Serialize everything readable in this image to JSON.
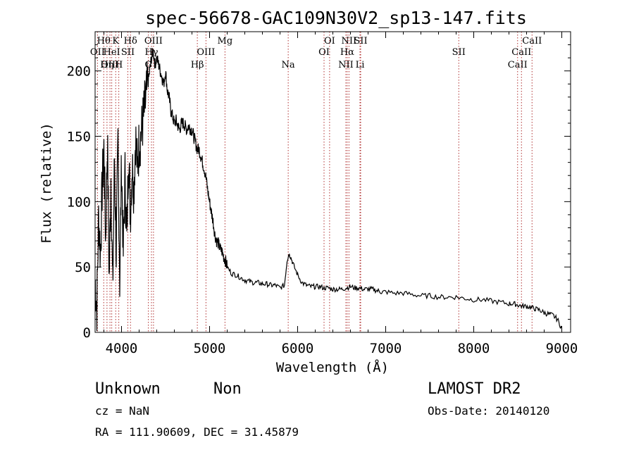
{
  "chart_data": {
    "type": "line",
    "title": "spec-56678-GAC109N30V2_sp13-147.fits",
    "xlabel": "Wavelength (Å)",
    "ylabel": "Flux (relative)",
    "xlim": [
      3700,
      9100
    ],
    "ylim": [
      0,
      230
    ],
    "xticks": [
      4000,
      5000,
      6000,
      7000,
      8000,
      9000
    ],
    "yticks": [
      0,
      50,
      100,
      150,
      200
    ],
    "grid": false,
    "series": [
      {
        "values_note": "",
        "x": [
          3700,
          3720,
          3740,
          3760,
          3780,
          3800,
          3820,
          3840,
          3860,
          3880,
          3900,
          3920,
          3940,
          3960,
          3980,
          4000,
          4020,
          4040,
          4060,
          4080,
          4100,
          4120,
          4140,
          4160,
          4180,
          4200,
          4220,
          4240,
          4260,
          4280,
          4300,
          4320,
          4340,
          4360,
          4380,
          4400,
          4420,
          4440,
          4460,
          4480,
          4500,
          4520,
          4540,
          4560,
          4580,
          4600,
          4620,
          4640,
          4660,
          4680,
          4700,
          4720,
          4740,
          4760,
          4780,
          4800,
          4820,
          4840,
          4860,
          4880,
          4900,
          4920,
          4940,
          4960,
          4980,
          5000,
          5020,
          5040,
          5060,
          5080,
          5100,
          5120,
          5140,
          5160,
          5180,
          5200,
          5250,
          5300,
          5350,
          5400,
          5450,
          5500,
          5550,
          5600,
          5650,
          5700,
          5750,
          5800,
          5850,
          5880,
          5900,
          5920,
          5950,
          6000,
          6050,
          6100,
          6150,
          6200,
          6250,
          6300,
          6350,
          6400,
          6450,
          6500,
          6550,
          6600,
          6650,
          6700,
          6750,
          6800,
          6850,
          6900,
          6950,
          7000,
          7100,
          7200,
          7300,
          7400,
          7500,
          7600,
          7700,
          7800,
          7900,
          8000,
          8100,
          8200,
          8300,
          8400,
          8450,
          8500,
          8550,
          8600,
          8650,
          8700,
          8750,
          8800,
          8850,
          8900,
          8950,
          9000
        ],
        "y": [
          40,
          20,
          90,
          60,
          110,
          140,
          70,
          150,
          40,
          120,
          30,
          135,
          60,
          145,
          40,
          130,
          60,
          120,
          70,
          140,
          90,
          130,
          110,
          150,
          125,
          145,
          150,
          160,
          170,
          180,
          190,
          200,
          210,
          215,
          205,
          210,
          205,
          200,
          195,
          190,
          200,
          185,
          180,
          170,
          165,
          160,
          162,
          158,
          155,
          160,
          160,
          158,
          155,
          158,
          156,
          155,
          150,
          145,
          140,
          140,
          135,
          130,
          125,
          118,
          108,
          100,
          92,
          85,
          75,
          70,
          68,
          64,
          62,
          58,
          55,
          50,
          45,
          44,
          42,
          40,
          39,
          38,
          38,
          37,
          37,
          36,
          36,
          34,
          36,
          55,
          60,
          58,
          52,
          44,
          38,
          36,
          35,
          35,
          35,
          34,
          34,
          33,
          33,
          33,
          34,
          35,
          34,
          34,
          33,
          33,
          33,
          32,
          31,
          31,
          30,
          30,
          29,
          28,
          28,
          27,
          27,
          27,
          26,
          25,
          25,
          24,
          23,
          22,
          22,
          21,
          20,
          20,
          19,
          18,
          17,
          15,
          14,
          13,
          10,
          3
        ]
      }
    ],
    "spectral_lines": [
      {
        "name": "Hθ",
        "wavelength": 3798,
        "row": 0
      },
      {
        "name": "K",
        "wavelength": 3934,
        "row": 0
      },
      {
        "name": "Hδ",
        "wavelength": 4102,
        "row": 0
      },
      {
        "name": "OII",
        "wavelength": 3727,
        "row": 1
      },
      {
        "name": "HeI",
        "wavelength": 3889,
        "row": 1
      },
      {
        "name": "SII",
        "wavelength": 4072,
        "row": 1
      },
      {
        "name": "OIII",
        "wavelength": 3869,
        "row": 2
      },
      {
        "name": "Hη",
        "wavelength": 3835,
        "row": 2
      },
      {
        "name": "H",
        "wavelength": 3969,
        "row": 2
      },
      {
        "name": "OIII",
        "wavelength": 4363,
        "row": 0
      },
      {
        "name": "Hγ",
        "wavelength": 4340,
        "row": 1
      },
      {
        "name": "G",
        "wavelength": 4305,
        "row": 2
      },
      {
        "name": "Hβ",
        "wavelength": 4861,
        "row": 2
      },
      {
        "name": "OIII",
        "wavelength": 4959,
        "row": 1
      },
      {
        "name": "Mg",
        "wavelength": 5175,
        "row": 0
      },
      {
        "name": "Na",
        "wavelength": 5893,
        "row": 2
      },
      {
        "name": "OI",
        "wavelength": 6363,
        "row": 0
      },
      {
        "name": "OI",
        "wavelength": 6300,
        "row": 1
      },
      {
        "name": "NII",
        "wavelength": 6583,
        "row": 0
      },
      {
        "name": "SII",
        "wavelength": 6716,
        "row": 0
      },
      {
        "name": "Hα",
        "wavelength": 6563,
        "row": 1
      },
      {
        "name": "NII",
        "wavelength": 6548,
        "row": 2
      },
      {
        "name": "Li",
        "wavelength": 6708,
        "row": 2
      },
      {
        "name": "SII",
        "wavelength": 7830,
        "row": 1
      },
      {
        "name": "CaII",
        "wavelength": 8662,
        "row": 0
      },
      {
        "name": "CaII",
        "wavelength": 8542,
        "row": 1
      },
      {
        "name": "CaII",
        "wavelength": 8498,
        "row": 2
      }
    ],
    "line_color": "#000000",
    "marker_color": "#b03030"
  },
  "info": {
    "class": "Unknown",
    "subclass": "Non",
    "survey": "LAMOST DR2",
    "cz": "cz = NaN",
    "obs_date": "Obs-Date: 20140120",
    "coords": "RA = 111.90609, DEC =  31.45879"
  }
}
